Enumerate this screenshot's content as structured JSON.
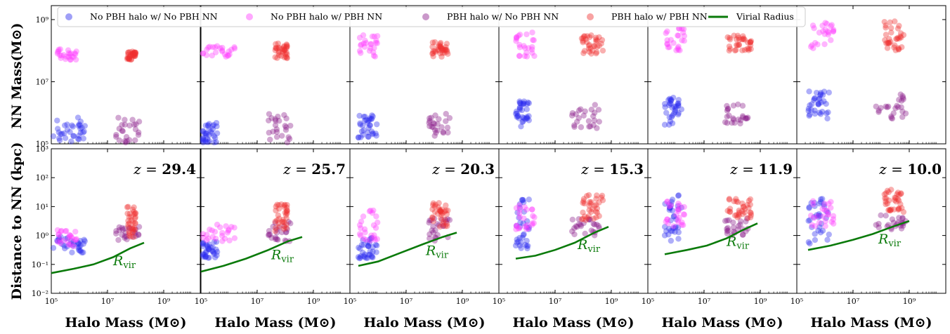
{
  "chart_data": {
    "type": "scatter",
    "layout": "2 rows x 6 columns of log-log scatter panels",
    "xlabel": "Halo Mass (M⊙)",
    "ylabel_top": "NN Mass(M⊙)",
    "ylabel_bottom": "Distance to NN (kpc)",
    "x_scale": "log",
    "y_scale": "log",
    "xlim_log10": [
      5,
      10.3
    ],
    "ylim_top_log10": [
      5,
      9.45
    ],
    "ylim_bottom_log10": [
      -2,
      3
    ],
    "x_ticks": [
      "10^5",
      "10^7",
      "10^9"
    ],
    "y_ticks_top": [
      "10^5",
      "10^7",
      "10^9"
    ],
    "y_ticks_bottom": [
      "10^-2",
      "10^-1",
      "10^0",
      "10^1",
      "10^2",
      "10^3"
    ],
    "rvir_label": "R_vir",
    "legend": [
      {
        "name": "No PBH halo w/ No PBH NN",
        "color": "#2a2aee",
        "marker": "circle"
      },
      {
        "name": "No PBH halo w/ PBH NN",
        "color": "#ff3dff",
        "marker": "circle"
      },
      {
        "name": "PBH halo w/ No PBH NN",
        "color": "#8a1a8a",
        "marker": "circle"
      },
      {
        "name": "PBH halo w/ PBH NN",
        "color": "#f03030",
        "marker": "circle"
      },
      {
        "name": "Virial Radius",
        "color": "#0a7a0a",
        "marker": "line"
      }
    ],
    "legend_placement": "top, spanning panels",
    "panels": [
      {
        "z": "29.4",
        "clusters": {
          "blue": {
            "x_log10": [
              5.0,
              6.2
            ],
            "top_log10": [
              5.0,
              5.85
            ],
            "bottom_log10": [
              -0.6,
              0.0
            ]
          },
          "magenta": {
            "x_log10": [
              5.0,
              5.9
            ],
            "top_log10": [
              7.7,
              8.05
            ],
            "bottom_log10": [
              -0.4,
              0.2
            ]
          },
          "purple": {
            "x_log10": [
              7.3,
              8.3
            ],
            "top_log10": [
              5.0,
              5.9
            ],
            "bottom_log10": [
              -0.2,
              0.3
            ]
          },
          "red": {
            "x_log10": [
              7.7,
              8.0
            ],
            "top_log10": [
              7.7,
              8.0
            ],
            "bottom_log10": [
              -0.1,
              1.0
            ]
          }
        },
        "rvir_log10": [
          [
            5.0,
            -1.3
          ],
          [
            5.8,
            -1.15
          ],
          [
            6.5,
            -1.0
          ],
          [
            7.2,
            -0.75
          ],
          [
            7.8,
            -0.45
          ],
          [
            8.3,
            -0.25
          ]
        ]
      },
      {
        "z": "25.7",
        "clusters": {
          "blue": {
            "x_log10": [
              5.0,
              5.6
            ],
            "top_log10": [
              5.0,
              5.7
            ],
            "bottom_log10": [
              -0.8,
              -0.2
            ]
          },
          "magenta": {
            "x_log10": [
              5.0,
              6.2
            ],
            "top_log10": [
              7.8,
              8.15
            ],
            "bottom_log10": [
              -0.3,
              0.4
            ]
          },
          "purple": {
            "x_log10": [
              7.4,
              8.2
            ],
            "top_log10": [
              5.0,
              6.0
            ],
            "bottom_log10": [
              -0.2,
              0.5
            ]
          },
          "red": {
            "x_log10": [
              7.6,
              8.1
            ],
            "top_log10": [
              7.75,
              8.25
            ],
            "bottom_log10": [
              0.0,
              1.1
            ]
          }
        },
        "rvir_log10": [
          [
            5.0,
            -1.25
          ],
          [
            5.8,
            -1.05
          ],
          [
            6.6,
            -0.8
          ],
          [
            7.4,
            -0.5
          ],
          [
            8.1,
            -0.2
          ],
          [
            8.6,
            -0.05
          ]
        ]
      },
      {
        "z": "20.3",
        "clusters": {
          "blue": {
            "x_log10": [
              5.3,
              6.0
            ],
            "top_log10": [
              5.2,
              6.0
            ],
            "bottom_log10": [
              -0.8,
              0.0
            ]
          },
          "magenta": {
            "x_log10": [
              5.3,
              6.0
            ],
            "top_log10": [
              7.8,
              8.5
            ],
            "bottom_log10": [
              -0.2,
              0.9
            ]
          },
          "purple": {
            "x_log10": [
              7.8,
              8.6
            ],
            "top_log10": [
              5.2,
              6.0
            ],
            "bottom_log10": [
              -0.2,
              0.6
            ]
          },
          "red": {
            "x_log10": [
              7.9,
              8.5
            ],
            "top_log10": [
              7.8,
              8.3
            ],
            "bottom_log10": [
              0.3,
              1.2
            ]
          }
        },
        "rvir_log10": [
          [
            5.3,
            -1.05
          ],
          [
            6.0,
            -0.9
          ],
          [
            6.8,
            -0.6
          ],
          [
            7.6,
            -0.3
          ],
          [
            8.3,
            -0.05
          ],
          [
            8.8,
            0.1
          ]
        ]
      },
      {
        "z": "15.3",
        "clusters": {
          "blue": {
            "x_log10": [
              5.6,
              6.1
            ],
            "top_log10": [
              5.5,
              6.4
            ],
            "bottom_log10": [
              -0.5,
              1.3
            ]
          },
          "magenta": {
            "x_log10": [
              5.6,
              6.3
            ],
            "top_log10": [
              7.8,
              8.6
            ],
            "bottom_log10": [
              0.2,
              1.1
            ]
          },
          "purple": {
            "x_log10": [
              7.6,
              8.6
            ],
            "top_log10": [
              5.5,
              6.3
            ],
            "bottom_log10": [
              0.0,
              0.6
            ]
          },
          "red": {
            "x_log10": [
              7.9,
              8.7
            ],
            "top_log10": [
              7.9,
              8.5
            ],
            "bottom_log10": [
              0.5,
              1.4
            ]
          }
        },
        "rvir_log10": [
          [
            5.6,
            -0.8
          ],
          [
            6.3,
            -0.7
          ],
          [
            7.0,
            -0.5
          ],
          [
            7.7,
            -0.25
          ],
          [
            8.4,
            0.1
          ],
          [
            8.9,
            0.3
          ]
        ]
      },
      {
        "z": "11.9",
        "clusters": {
          "blue": {
            "x_log10": [
              5.6,
              6.2
            ],
            "top_log10": [
              5.6,
              6.5
            ],
            "bottom_log10": [
              -0.3,
              1.4
            ]
          },
          "magenta": {
            "x_log10": [
              5.6,
              6.3
            ],
            "top_log10": [
              8.0,
              8.75
            ],
            "bottom_log10": [
              0.3,
              1.2
            ]
          },
          "purple": {
            "x_log10": [
              7.7,
              8.6
            ],
            "top_log10": [
              5.6,
              6.3
            ],
            "bottom_log10": [
              0.0,
              0.6
            ]
          },
          "red": {
            "x_log10": [
              7.8,
              8.7
            ],
            "top_log10": [
              8.0,
              8.5
            ],
            "bottom_log10": [
              0.6,
              1.3
            ]
          }
        },
        "rvir_log10": [
          [
            5.6,
            -0.65
          ],
          [
            6.4,
            -0.5
          ],
          [
            7.1,
            -0.35
          ],
          [
            7.8,
            -0.1
          ],
          [
            8.4,
            0.2
          ],
          [
            8.9,
            0.42
          ]
        ]
      },
      {
        "z": "10.0",
        "clusters": {
          "blue": {
            "x_log10": [
              5.4,
              6.2
            ],
            "top_log10": [
              5.8,
              6.7
            ],
            "bottom_log10": [
              -0.3,
              1.4
            ]
          },
          "magenta": {
            "x_log10": [
              5.5,
              6.4
            ],
            "top_log10": [
              8.0,
              8.95
            ],
            "bottom_log10": [
              0.3,
              1.2
            ]
          },
          "purple": {
            "x_log10": [
              7.8,
              8.9
            ],
            "top_log10": [
              5.8,
              6.6
            ],
            "bottom_log10": [
              0.2,
              0.7
            ]
          },
          "red": {
            "x_log10": [
              8.1,
              8.8
            ],
            "top_log10": [
              8.0,
              8.95
            ],
            "bottom_log10": [
              0.8,
              1.6
            ]
          }
        },
        "rvir_log10": [
          [
            5.4,
            -0.5
          ],
          [
            6.2,
            -0.35
          ],
          [
            7.0,
            -0.15
          ],
          [
            7.7,
            0.05
          ],
          [
            8.4,
            0.3
          ],
          [
            9.0,
            0.5
          ]
        ]
      }
    ]
  }
}
